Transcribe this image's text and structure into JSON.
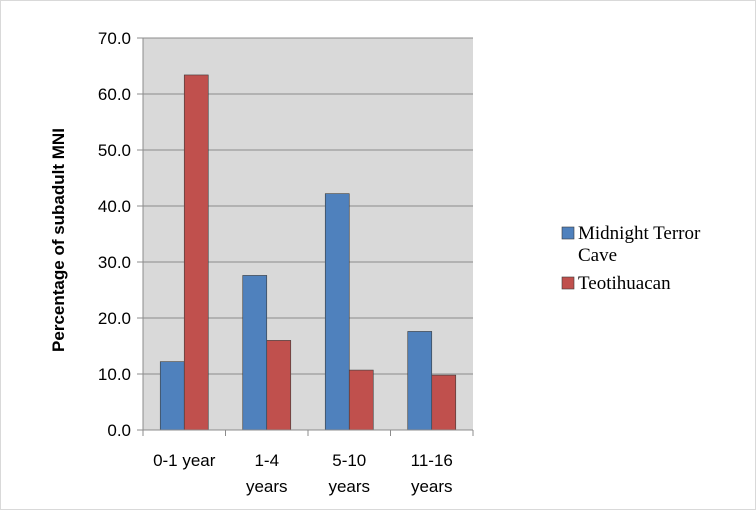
{
  "chart_data": {
    "type": "bar",
    "title": "",
    "xlabel": "",
    "ylabel": "Percentage of subadult MNI",
    "ylim": [
      0,
      70
    ],
    "yticks": [
      "0.0",
      "10.0",
      "20.0",
      "30.0",
      "40.0",
      "50.0",
      "60.0",
      "70.0"
    ],
    "categories": [
      [
        "0-1 year"
      ],
      [
        "1-4",
        "years"
      ],
      [
        "5-10",
        "years"
      ],
      [
        "11-16",
        "years"
      ]
    ],
    "series": [
      {
        "name": "Midnight Terror Cave",
        "legend_lines": [
          "Midnight Terror",
          "Cave"
        ],
        "color": "#4f81bd",
        "values": [
          12.2,
          27.6,
          42.2,
          17.6
        ]
      },
      {
        "name": "Teotihuacan",
        "legend_lines": [
          "Teotihuacan"
        ],
        "color": "#c0504d",
        "values": [
          63.4,
          16.0,
          10.7,
          9.8
        ]
      }
    ],
    "grid": true,
    "plot_background": "#d9d9d9",
    "legend": "right"
  }
}
